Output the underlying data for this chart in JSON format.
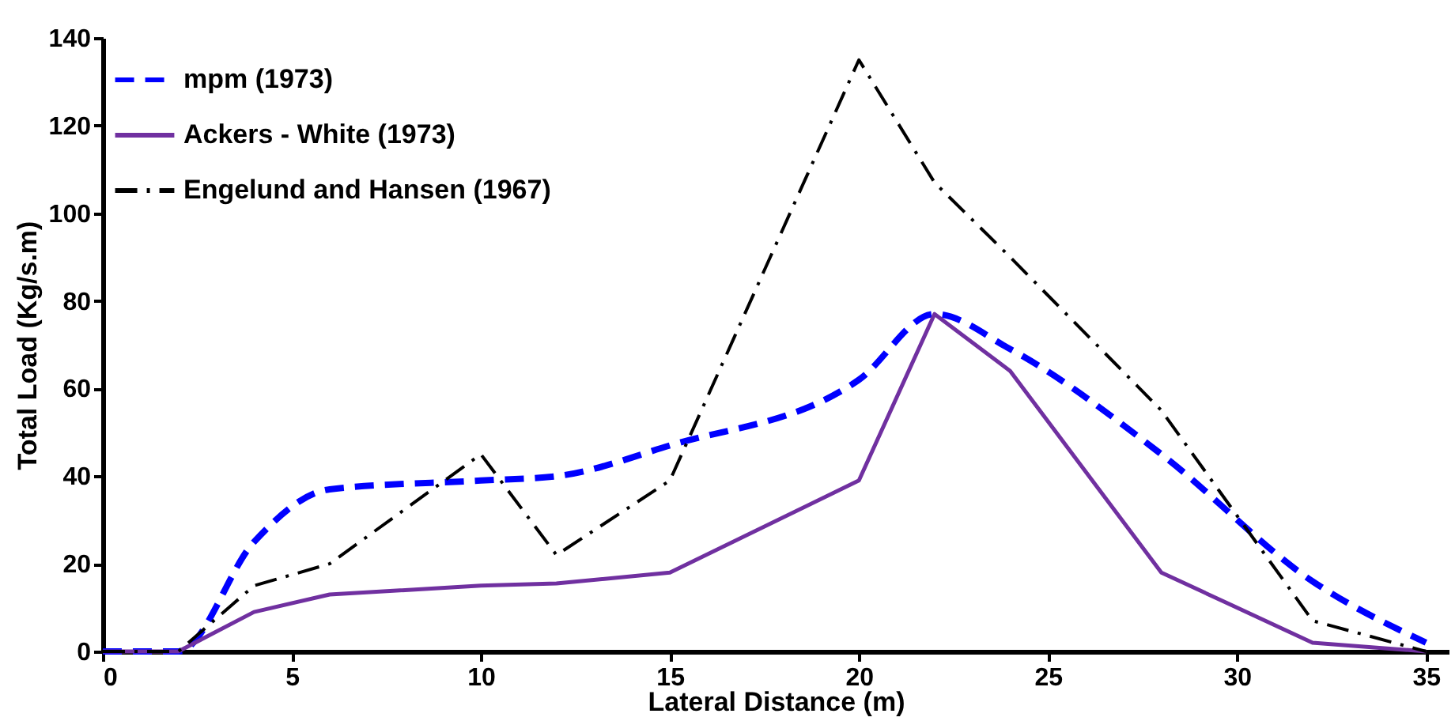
{
  "chart_data": {
    "type": "line",
    "xlabel": "Lateral Distance (m)",
    "ylabel": "Total Load (Kg/s.m)",
    "x": [
      0,
      2,
      4,
      6,
      10,
      12,
      15,
      20,
      22,
      24,
      28,
      32,
      35
    ],
    "xlim": [
      0,
      35.6
    ],
    "xticks": [
      0,
      5,
      10,
      15,
      20,
      25,
      30,
      35
    ],
    "ylim": [
      0,
      140
    ],
    "yticks": [
      0,
      20,
      40,
      60,
      80,
      100,
      120,
      140
    ],
    "grid": false,
    "legend": "top left",
    "marker": "none",
    "series": [
      {
        "name": "mpm (1973)",
        "color": "#0000ff",
        "line_style": "dashed",
        "values": [
          0,
          0,
          25,
          37,
          39,
          40,
          47,
          62,
          77,
          69,
          45,
          16,
          2
        ]
      },
      {
        "name": " Ackers - White (1973)",
        "color": "#7030a0",
        "line_style": "solid",
        "values": [
          0,
          0,
          9,
          13,
          15,
          15.5,
          18,
          39,
          77,
          64,
          18,
          2,
          0
        ]
      },
      {
        "name": "Engelund and Hansen (1967)",
        "color": "#000000",
        "line_style": "dashdot",
        "values": [
          0,
          0,
          15,
          20,
          45,
          22,
          39,
          135,
          107,
          90,
          55,
          7,
          0
        ]
      }
    ]
  }
}
